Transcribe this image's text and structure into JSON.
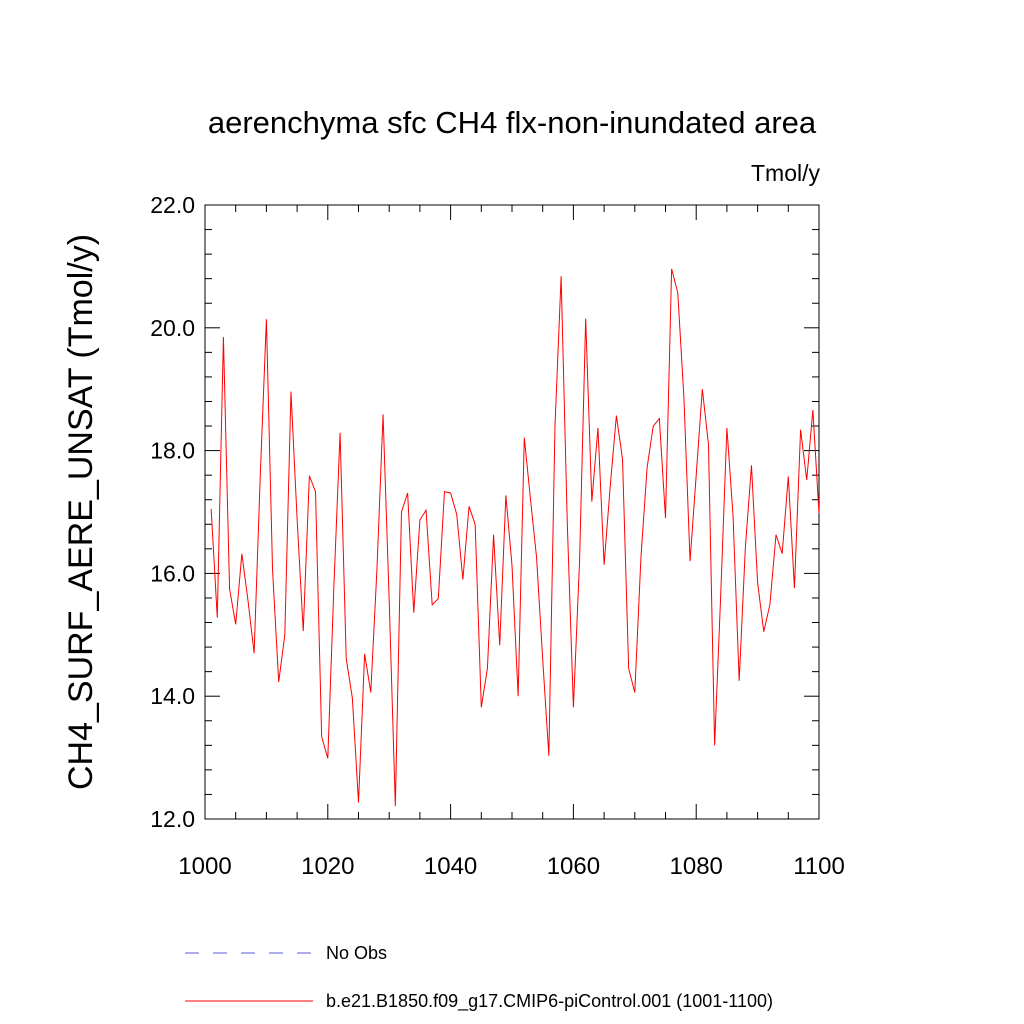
{
  "chart_data": {
    "type": "line",
    "title": "aerenchyma sfc CH4 flx-non-inundated area",
    "units_label": "Tmol/y",
    "ylabel": "CH4_SURF_AERE_UNSAT  (Tmol/y)",
    "xlabel": "",
    "xlim": [
      1000,
      1100
    ],
    "ylim": [
      12.0,
      22.0
    ],
    "x_ticks": [
      1000,
      1020,
      1040,
      1060,
      1080,
      1100
    ],
    "y_ticks": [
      12.0,
      14.0,
      16.0,
      18.0,
      20.0,
      22.0
    ],
    "y_tick_labels": [
      "12.0",
      "14.0",
      "16.0",
      "18.0",
      "20.0",
      "22.0"
    ],
    "grid": false,
    "legend_position": "bottom",
    "series": [
      {
        "name": "No Obs",
        "color": "#5b5bd6",
        "style": "dashed",
        "x": [],
        "values": []
      },
      {
        "name": "b.e21.B1850.f09_g17.CMIP6-piControl.001 (1001-1100)",
        "color": "#ff0000",
        "style": "solid",
        "x": [
          1001,
          1002,
          1003,
          1004,
          1005,
          1006,
          1007,
          1008,
          1009,
          1010,
          1011,
          1012,
          1013,
          1014,
          1015,
          1016,
          1017,
          1018,
          1019,
          1020,
          1021,
          1022,
          1023,
          1024,
          1025,
          1026,
          1027,
          1028,
          1029,
          1030,
          1031,
          1032,
          1033,
          1034,
          1035,
          1036,
          1037,
          1038,
          1039,
          1040,
          1041,
          1042,
          1043,
          1044,
          1045,
          1046,
          1047,
          1048,
          1049,
          1050,
          1051,
          1052,
          1053,
          1054,
          1055,
          1056,
          1057,
          1058,
          1059,
          1060,
          1061,
          1062,
          1063,
          1064,
          1065,
          1066,
          1067,
          1068,
          1069,
          1070,
          1071,
          1072,
          1073,
          1074,
          1075,
          1076,
          1077,
          1078,
          1079,
          1080,
          1081,
          1082,
          1083,
          1084,
          1085,
          1086,
          1087,
          1088,
          1089,
          1090,
          1091,
          1092,
          1093,
          1094,
          1095,
          1096,
          1097,
          1098,
          1099,
          1100
        ],
        "values": [
          17.05,
          15.28,
          19.85,
          15.75,
          15.17,
          16.32,
          15.56,
          14.7,
          17.59,
          20.14,
          16.06,
          14.23,
          15.0,
          18.96,
          16.89,
          15.06,
          17.59,
          17.33,
          13.34,
          12.99,
          15.81,
          18.29,
          14.61,
          13.97,
          12.27,
          14.69,
          14.06,
          16.06,
          18.59,
          15.55,
          12.21,
          17.0,
          17.31,
          15.36,
          16.87,
          17.03,
          15.49,
          15.59,
          17.33,
          17.31,
          16.96,
          15.9,
          17.09,
          16.8,
          13.82,
          14.46,
          16.63,
          14.83,
          17.27,
          16.13,
          14.0,
          18.21,
          17.22,
          16.26,
          14.6,
          13.03,
          18.4,
          20.84,
          16.83,
          13.82,
          16.19,
          20.15,
          17.17,
          18.37,
          16.14,
          17.42,
          18.57,
          17.86,
          14.45,
          14.06,
          16.26,
          17.72,
          18.4,
          18.52,
          16.9,
          20.96,
          20.57,
          18.86,
          16.2,
          17.6,
          19.0,
          18.1,
          13.2,
          15.67,
          18.37,
          16.94,
          14.25,
          16.41,
          17.76,
          15.85,
          15.05,
          15.49,
          16.63,
          16.32,
          17.58,
          15.76,
          18.34,
          17.52,
          18.66,
          16.98
        ]
      }
    ]
  }
}
